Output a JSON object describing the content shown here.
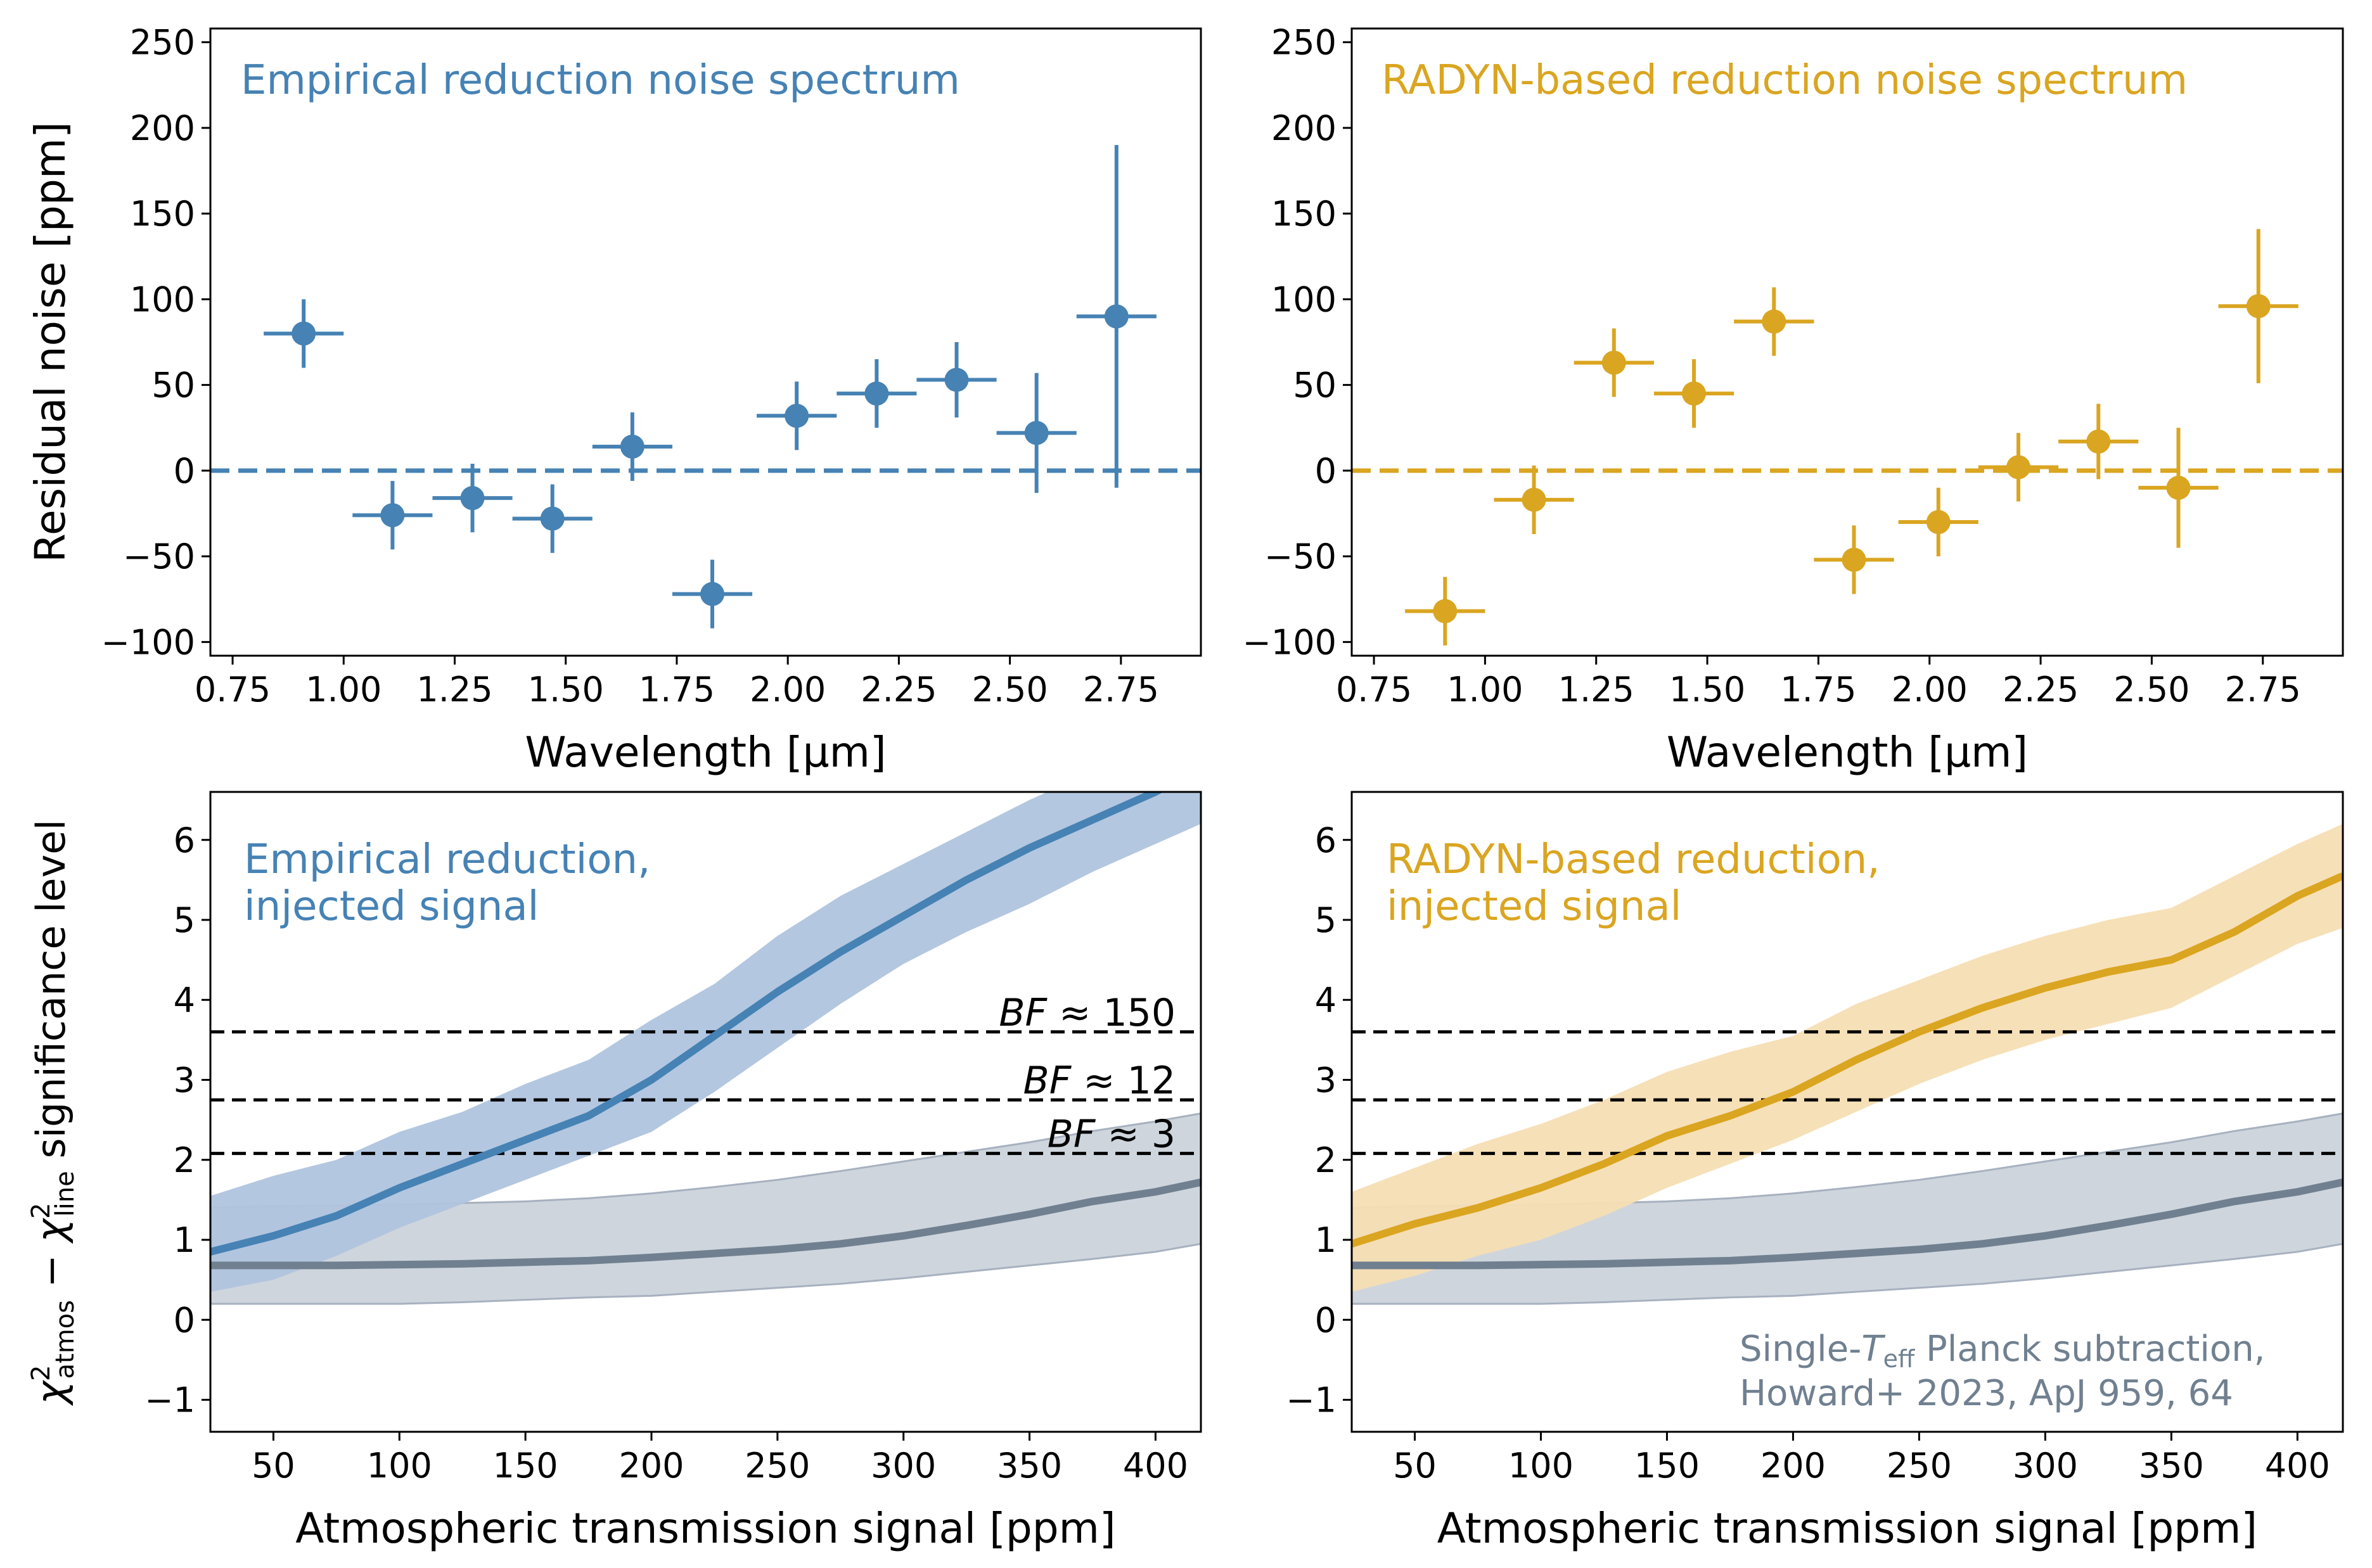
{
  "colors": {
    "empirical": "#4682b4",
    "empirical_band": "#b0c4de",
    "radyn": "#daa520",
    "radyn_band": "#f5deb3",
    "planck": "#708090",
    "planck_band": "#c9d0d9",
    "bf_line": "#000000"
  },
  "chart_data": [
    {
      "type": "scatter",
      "panel": "top-left",
      "title": "Empirical reduction noise spectrum",
      "xlabel": "Wavelength [μm]",
      "ylabel": "Residual noise [ppm]",
      "xlim": [
        0.7,
        2.93
      ],
      "ylim": [
        -108,
        258
      ],
      "xticks": [
        "0.75",
        "1.00",
        "1.25",
        "1.50",
        "1.75",
        "2.00",
        "2.25",
        "2.50",
        "2.75"
      ],
      "yticks": [
        "−100",
        "−50",
        "0",
        "50",
        "100",
        "150",
        "200",
        "250"
      ],
      "reference_line": 0,
      "series": [
        {
          "x": [
            0.91,
            1.11,
            1.29,
            1.47,
            1.65,
            1.83,
            2.02,
            2.2,
            2.38,
            2.56,
            2.74
          ],
          "y": [
            80,
            -26,
            -16,
            -28,
            14,
            -72,
            32,
            45,
            53,
            22,
            90
          ],
          "yerr": [
            20,
            20,
            20,
            20,
            20,
            20,
            20,
            20,
            22,
            35,
            100
          ],
          "xerr": [
            0.09,
            0.09,
            0.09,
            0.09,
            0.09,
            0.09,
            0.09,
            0.09,
            0.09,
            0.09,
            0.09
          ]
        }
      ]
    },
    {
      "type": "scatter",
      "panel": "top-right",
      "title": "RADYN-based reduction noise spectrum",
      "xlabel": "Wavelength [μm]",
      "ylabel": "",
      "xlim": [
        0.7,
        2.93
      ],
      "ylim": [
        -108,
        258
      ],
      "xticks": [
        "0.75",
        "1.00",
        "1.25",
        "1.50",
        "1.75",
        "2.00",
        "2.25",
        "2.50",
        "2.75"
      ],
      "yticks": [
        "−100",
        "−50",
        "0",
        "50",
        "100",
        "150",
        "200",
        "250"
      ],
      "reference_line": 0,
      "series": [
        {
          "x": [
            0.91,
            1.11,
            1.29,
            1.47,
            1.65,
            1.83,
            2.02,
            2.2,
            2.38,
            2.56,
            2.74
          ],
          "y": [
            -82,
            -17,
            63,
            45,
            87,
            -52,
            -30,
            2,
            17,
            -10,
            96
          ],
          "yerr": [
            20,
            20,
            20,
            20,
            20,
            20,
            20,
            20,
            22,
            35,
            45
          ],
          "xerr": [
            0.09,
            0.09,
            0.09,
            0.09,
            0.09,
            0.09,
            0.09,
            0.09,
            0.09,
            0.09,
            0.09
          ]
        }
      ]
    },
    {
      "type": "line",
      "panel": "bottom-left",
      "annotation": [
        "Empirical reduction,",
        "injected signal"
      ],
      "xlabel": "Atmospheric transmission signal [ppm]",
      "ylabel_parts": [
        "χ",
        "2",
        "atmos",
        " − ",
        "χ",
        "2",
        "line",
        " significance level"
      ],
      "xlim": [
        25,
        418
      ],
      "ylim": [
        -1.4,
        6.6
      ],
      "xticks": [
        "50",
        "100",
        "150",
        "200",
        "250",
        "300",
        "350",
        "400"
      ],
      "yticks": [
        "−1",
        "0",
        "1",
        "2",
        "3",
        "4",
        "5",
        "6"
      ],
      "thresholds": [
        {
          "y": 3.6,
          "label": "BF ≈ 150"
        },
        {
          "y": 2.75,
          "label": "BF ≈ 12"
        },
        {
          "y": 2.08,
          "label": "BF ≈ 3"
        }
      ],
      "x": [
        25,
        50,
        75,
        100,
        125,
        150,
        175,
        200,
        225,
        250,
        275,
        300,
        325,
        350,
        375,
        400,
        418
      ],
      "series": [
        {
          "y": [
            0.85,
            1.05,
            1.3,
            1.65,
            1.95,
            2.25,
            2.55,
            3.0,
            3.55,
            4.1,
            4.6,
            5.05,
            5.5,
            5.9,
            6.25,
            6.6,
            6.9
          ],
          "lower": [
            0.35,
            0.5,
            0.8,
            1.15,
            1.45,
            1.75,
            2.05,
            2.35,
            2.85,
            3.4,
            3.95,
            4.45,
            4.85,
            5.2,
            5.6,
            5.95,
            6.2
          ],
          "upper": [
            1.55,
            1.8,
            2.0,
            2.35,
            2.6,
            2.95,
            3.25,
            3.75,
            4.2,
            4.8,
            5.3,
            5.7,
            6.1,
            6.5,
            6.85,
            7.2,
            7.4
          ]
        },
        {
          "y": [
            0.68,
            0.68,
            0.68,
            0.69,
            0.7,
            0.72,
            0.74,
            0.78,
            0.83,
            0.88,
            0.95,
            1.05,
            1.18,
            1.32,
            1.48,
            1.6,
            1.72
          ],
          "lower": [
            0.2,
            0.2,
            0.2,
            0.2,
            0.22,
            0.25,
            0.28,
            0.3,
            0.35,
            0.4,
            0.45,
            0.52,
            0.6,
            0.68,
            0.76,
            0.85,
            0.95
          ],
          "upper": [
            1.4,
            1.42,
            1.43,
            1.44,
            1.46,
            1.48,
            1.52,
            1.58,
            1.66,
            1.75,
            1.86,
            1.98,
            2.1,
            2.22,
            2.36,
            2.48,
            2.58
          ]
        }
      ]
    },
    {
      "type": "line",
      "panel": "bottom-right",
      "annotation": [
        "RADYN-based reduction,",
        "injected signal"
      ],
      "annotation2_parts": [
        "Single-",
        "T",
        "eff",
        " Planck subtraction,"
      ],
      "annotation2_line2": "Howard+ 2023, ApJ 959, 64",
      "xlabel": "Atmospheric transmission signal [ppm]",
      "ylabel_parts": [],
      "xlim": [
        25,
        418
      ],
      "ylim": [
        -1.4,
        6.6
      ],
      "xticks": [
        "50",
        "100",
        "150",
        "200",
        "250",
        "300",
        "350",
        "400"
      ],
      "yticks": [
        "−1",
        "0",
        "1",
        "2",
        "3",
        "4",
        "5",
        "6"
      ],
      "thresholds": [
        {
          "y": 3.6,
          "label": ""
        },
        {
          "y": 2.75,
          "label": ""
        },
        {
          "y": 2.08,
          "label": ""
        }
      ],
      "x": [
        25,
        50,
        75,
        100,
        125,
        150,
        175,
        200,
        225,
        250,
        275,
        300,
        325,
        350,
        375,
        400,
        418
      ],
      "series": [
        {
          "y": [
            0.95,
            1.2,
            1.4,
            1.65,
            1.95,
            2.3,
            2.55,
            2.85,
            3.25,
            3.6,
            3.9,
            4.15,
            4.35,
            4.5,
            4.85,
            5.3,
            5.55
          ],
          "lower": [
            0.35,
            0.55,
            0.8,
            1.0,
            1.3,
            1.65,
            1.95,
            2.25,
            2.6,
            2.95,
            3.25,
            3.5,
            3.7,
            3.9,
            4.3,
            4.7,
            4.9
          ],
          "upper": [
            1.6,
            1.9,
            2.2,
            2.45,
            2.75,
            3.1,
            3.35,
            3.55,
            3.95,
            4.25,
            4.55,
            4.8,
            5.0,
            5.15,
            5.55,
            5.95,
            6.2
          ]
        },
        {
          "y": [
            0.68,
            0.68,
            0.68,
            0.69,
            0.7,
            0.72,
            0.74,
            0.78,
            0.83,
            0.88,
            0.95,
            1.05,
            1.18,
            1.32,
            1.48,
            1.6,
            1.72
          ],
          "lower": [
            0.2,
            0.2,
            0.2,
            0.2,
            0.22,
            0.25,
            0.28,
            0.3,
            0.35,
            0.4,
            0.45,
            0.52,
            0.6,
            0.68,
            0.76,
            0.85,
            0.95
          ],
          "upper": [
            1.4,
            1.42,
            1.43,
            1.44,
            1.46,
            1.48,
            1.52,
            1.58,
            1.66,
            1.75,
            1.86,
            1.98,
            2.1,
            2.22,
            2.36,
            2.48,
            2.58
          ]
        }
      ]
    }
  ]
}
